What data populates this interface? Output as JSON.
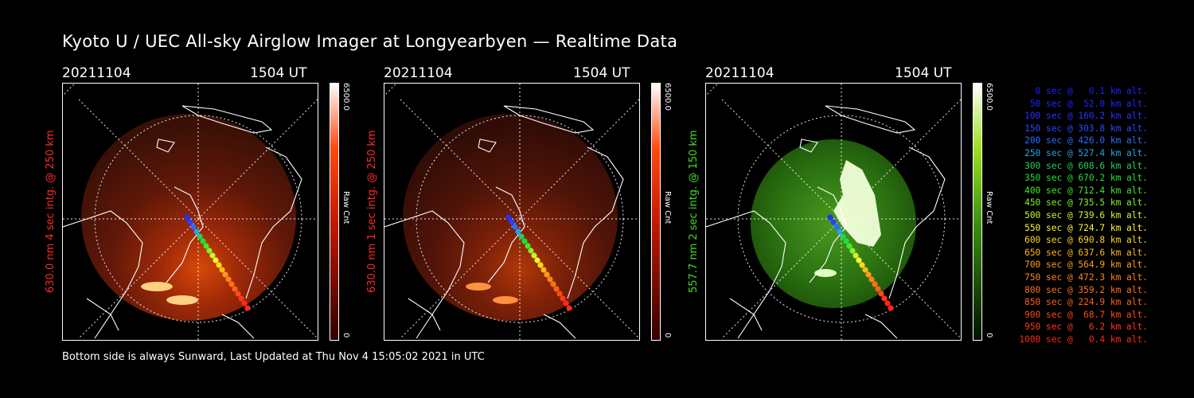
{
  "title": "Kyoto U / UEC All-sky Airglow Imager at Longyearbyen — Realtime Data",
  "footer": "Bottom side is always Sunward, Last Updated at Thu Nov  4 15:05:02 2021 in UTC",
  "panels": [
    {
      "date": "20211104",
      "time": "1504 UT",
      "side_label": "630.0 nm 4 sec intg. @ 250 km",
      "label_color": "#ff2a2a",
      "cbar_max": "6500.0",
      "cbar_min": "0",
      "cbar_unit": "Raw Cnt",
      "cbar_colors": [
        "#ffffff",
        "#ff4a10",
        "#c01800",
        "#300000"
      ]
    },
    {
      "date": "20211104",
      "time": "1504 UT",
      "side_label": "630.0 nm 1 sec intg. @ 250 km",
      "label_color": "#ff2a2a",
      "cbar_max": "6500.0",
      "cbar_min": "0",
      "cbar_unit": "Raw Cnt",
      "cbar_colors": [
        "#ffffff",
        "#ff4a10",
        "#c01800",
        "#300000"
      ]
    },
    {
      "date": "20211104",
      "time": "1504 UT",
      "side_label": "557.7 nm 2 sec intg. @ 150 km",
      "label_color": "#44dd22",
      "cbar_max": "6500.0",
      "cbar_min": "0",
      "cbar_unit": "Raw Cnt",
      "cbar_colors": [
        "#ffffff",
        "#9ee020",
        "#3a9010",
        "#001000"
      ]
    }
  ],
  "legend": [
    {
      "text": "0 sec @   0.1 km alt.",
      "color": "#2020ff"
    },
    {
      "text": "50 sec @  52.0 km alt.",
      "color": "#2424ff"
    },
    {
      "text": "100 sec @ 160.2 km alt.",
      "color": "#2a30ff"
    },
    {
      "text": "150 sec @ 303.8 km alt.",
      "color": "#2848ff"
    },
    {
      "text": "200 sec @ 426.0 km alt.",
      "color": "#2a6cff"
    },
    {
      "text": "250 sec @ 527.4 km alt.",
      "color": "#2aa0e0"
    },
    {
      "text": "300 sec @ 608.6 km alt.",
      "color": "#22d060"
    },
    {
      "text": "350 sec @ 670.2 km alt.",
      "color": "#22e030"
    },
    {
      "text": "400 sec @ 712.4 km alt.",
      "color": "#40e828"
    },
    {
      "text": "450 sec @ 735.5 km alt.",
      "color": "#88f028"
    },
    {
      "text": "500 sec @ 739.6 km alt.",
      "color": "#c8f828"
    },
    {
      "text": "550 sec @ 724.7 km alt.",
      "color": "#f8f830"
    },
    {
      "text": "600 sec @ 690.8 km alt.",
      "color": "#ffd820"
    },
    {
      "text": "650 sec @ 637.6 km alt.",
      "color": "#ffb818"
    },
    {
      "text": "700 sec @ 564.9 km alt.",
      "color": "#ff9c18"
    },
    {
      "text": "750 sec @ 472.3 km alt.",
      "color": "#ff8418"
    },
    {
      "text": "800 sec @ 359.2 km alt.",
      "color": "#ff7018"
    },
    {
      "text": "850 sec @ 224.9 km alt.",
      "color": "#ff6018"
    },
    {
      "text": "900 sec @  68.7 km alt.",
      "color": "#ff4a18"
    },
    {
      "text": "950 sec @   6.2 km alt.",
      "color": "#ff3818"
    },
    {
      "text": "1000 sec @   0.4 km alt.",
      "color": "#ff2818"
    }
  ]
}
